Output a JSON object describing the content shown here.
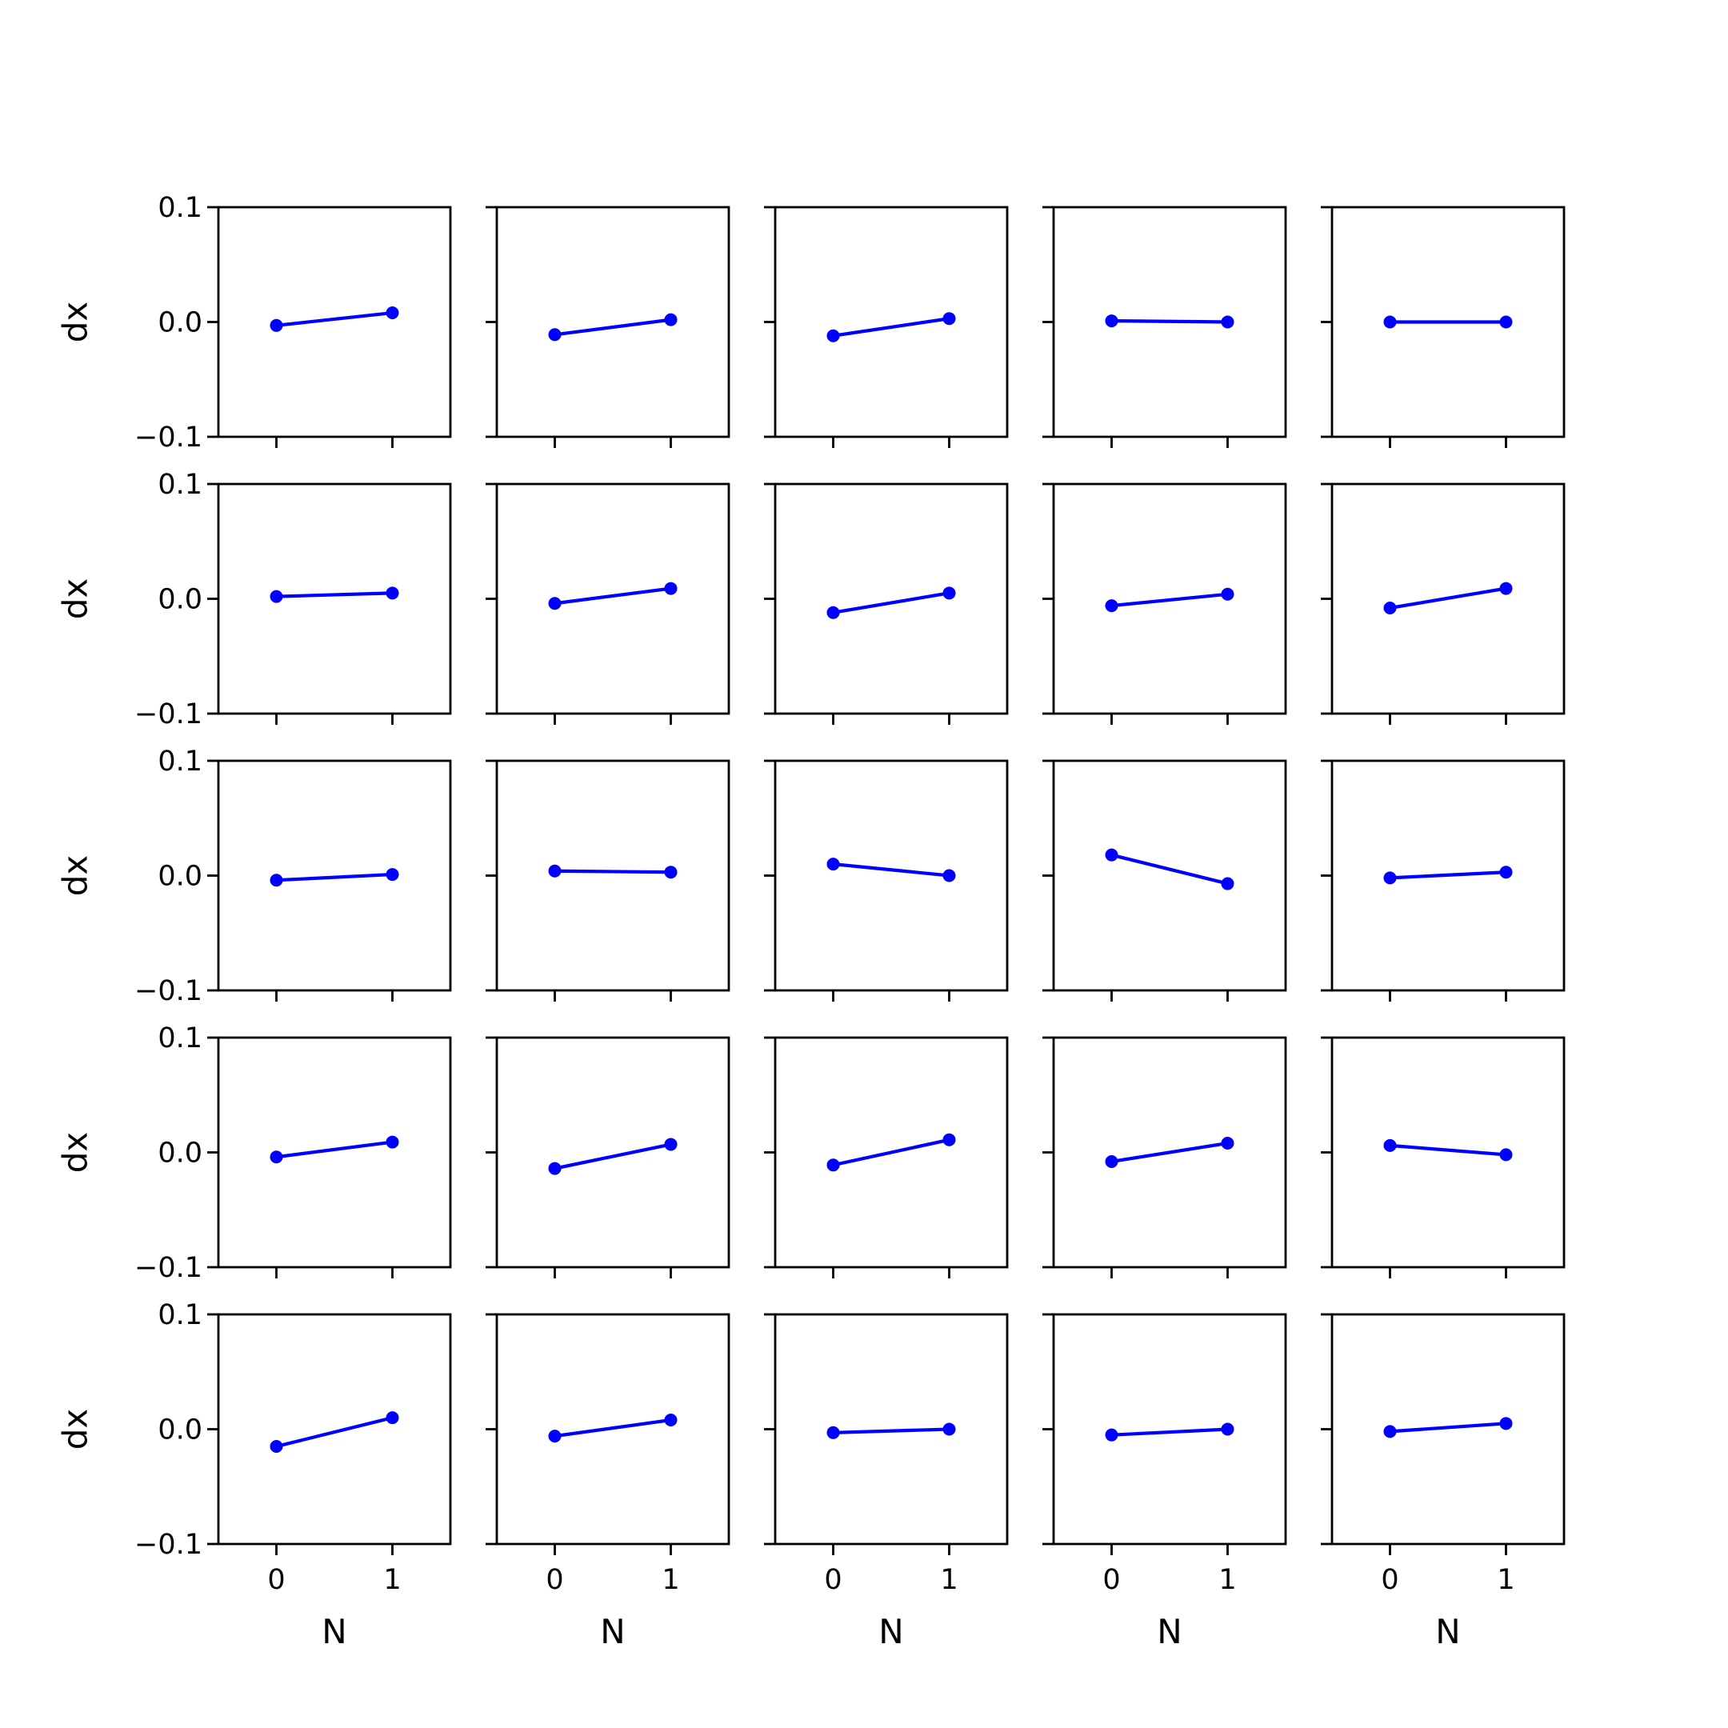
{
  "chart_data": {
    "type": "line",
    "layout": "5x5 grid of subplots",
    "colors": {
      "series": "#0000ff",
      "axes": "#000000",
      "background": "#ffffff"
    },
    "xlabel": "N",
    "ylabel": "dx",
    "xticks": [
      "0",
      "1"
    ],
    "yticks": [
      "0.1",
      "0.0",
      "−0.1"
    ],
    "ytick_values": [
      0.1,
      0.0,
      -0.1
    ],
    "xlim": [
      -0.5,
      1.5
    ],
    "ylim": [
      -0.1,
      0.1
    ],
    "grid": false,
    "legend": "none",
    "x": [
      0,
      1
    ],
    "panels": [
      [
        [
          -0.003,
          0.008
        ],
        [
          -0.011,
          0.002
        ],
        [
          -0.012,
          0.003
        ],
        [
          0.001,
          0.0
        ],
        [
          0.0,
          0.0
        ]
      ],
      [
        [
          0.002,
          0.005
        ],
        [
          -0.004,
          0.009
        ],
        [
          -0.012,
          0.005
        ],
        [
          -0.006,
          0.004
        ],
        [
          -0.008,
          0.009
        ]
      ],
      [
        [
          -0.004,
          0.001
        ],
        [
          0.004,
          0.003
        ],
        [
          0.01,
          0.0
        ],
        [
          0.018,
          -0.007
        ],
        [
          -0.002,
          0.003
        ]
      ],
      [
        [
          -0.004,
          0.009
        ],
        [
          -0.014,
          0.007
        ],
        [
          -0.011,
          0.011
        ],
        [
          -0.008,
          0.008
        ],
        [
          0.006,
          -0.002
        ]
      ],
      [
        [
          -0.015,
          0.01
        ],
        [
          -0.006,
          0.008
        ],
        [
          -0.003,
          0.0
        ],
        [
          -0.005,
          0.0
        ],
        [
          -0.002,
          0.005
        ]
      ]
    ]
  }
}
